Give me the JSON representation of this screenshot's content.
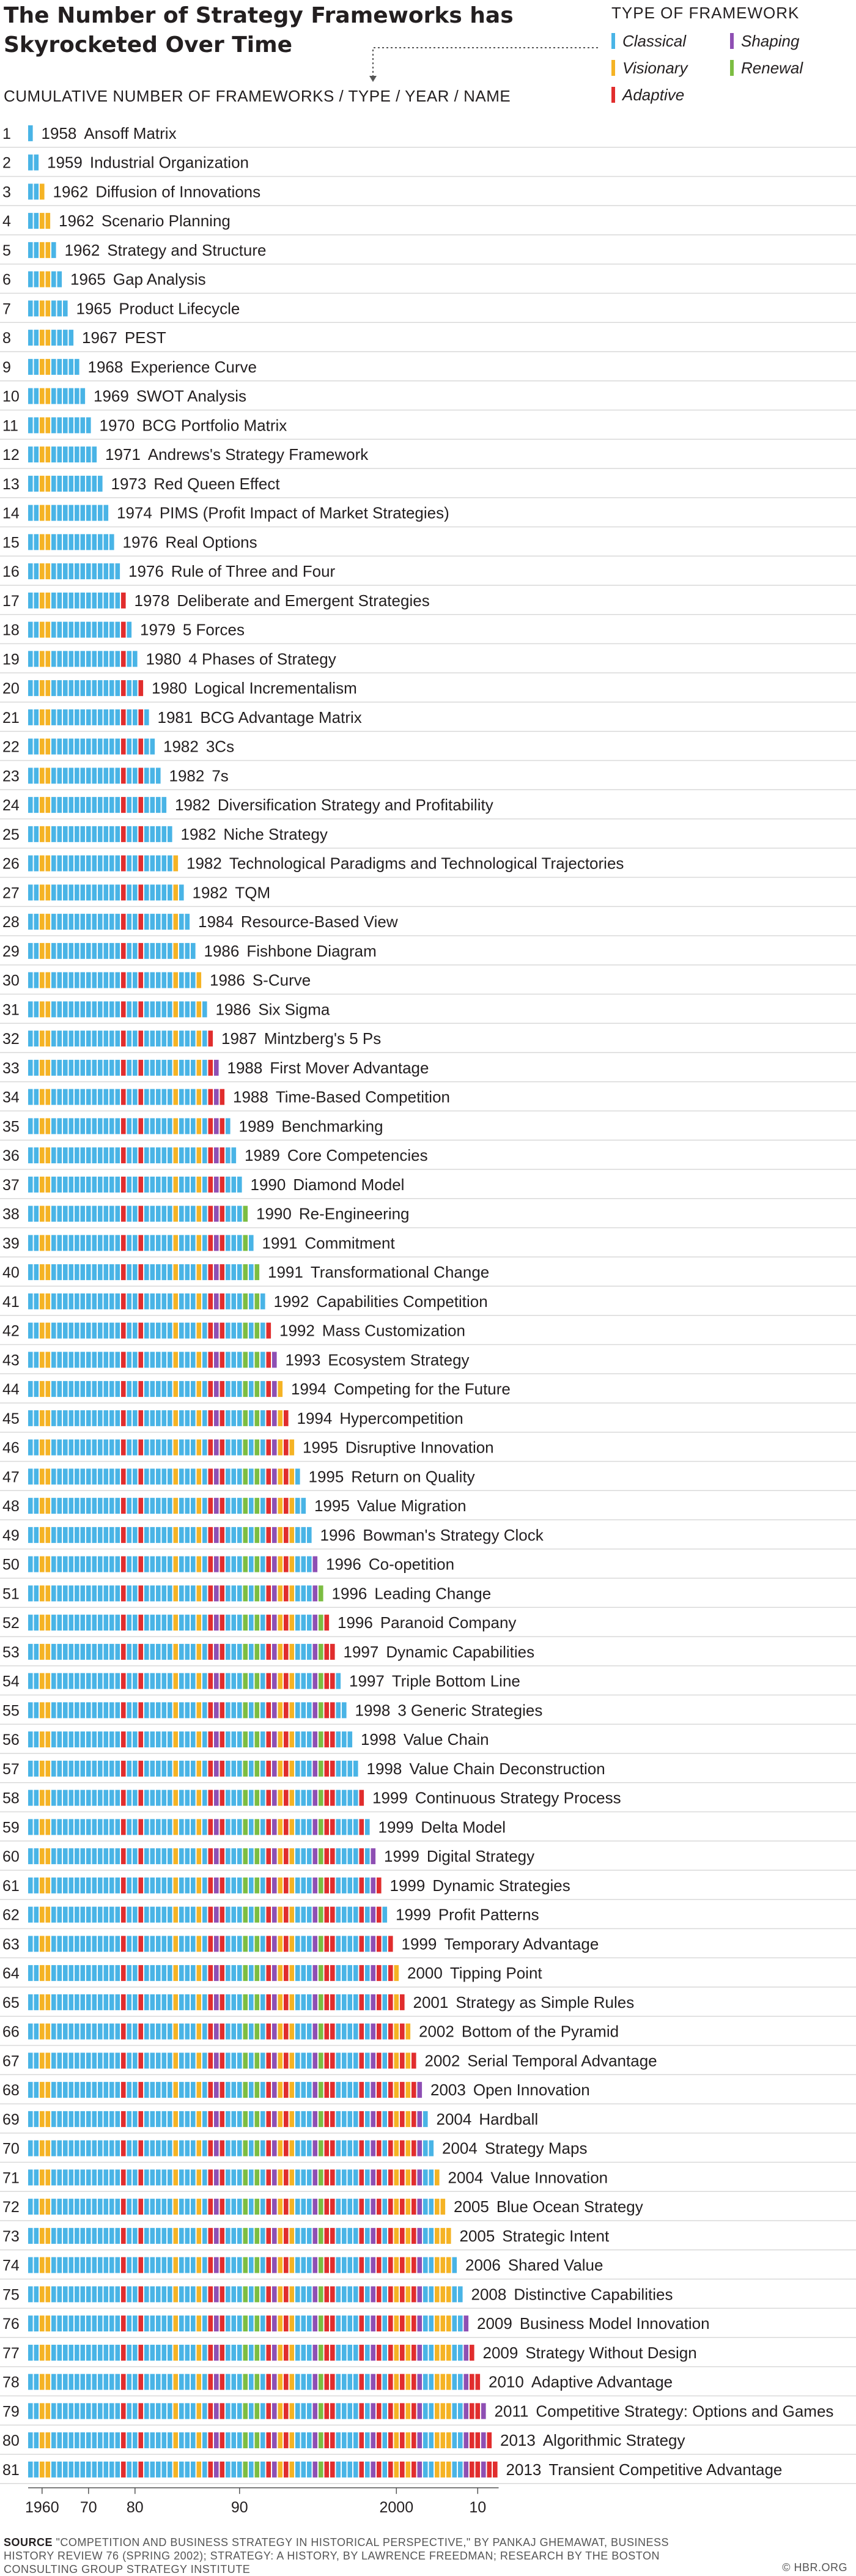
{
  "header": {
    "title": "The Number of Strategy Frameworks has Skyrocketed Over Time",
    "subheader": "CUMULATIVE NUMBER OF FRAMEWORKS / TYPE / YEAR / NAME"
  },
  "legend": {
    "title": "TYPE OF FRAMEWORK",
    "items": [
      {
        "label": "Classical",
        "color": "#49b4e6"
      },
      {
        "label": "Shaping",
        "color": "#8e4fb3"
      },
      {
        "label": "Visionary",
        "color": "#f5b324"
      },
      {
        "label": "Renewal",
        "color": "#7cbd42"
      },
      {
        "label": "Adaptive",
        "color": "#e12d2d"
      }
    ]
  },
  "footer": {
    "source_head": "SOURCE",
    "source_text": "\"COMPETITION AND BUSINESS STRATEGY IN HISTORICAL PERSPECTIVE,\" BY PANKAJ GHEMAWAT, BUSINESS HISTORY REVIEW 76 (SPRING 2002); STRATEGY: A HISTORY, BY LAWRENCE FREEDMAN; RESEARCH BY THE BOSTON CONSULTING GROUP STRATEGY INSTITUTE",
    "credit": "© HBR.ORG"
  },
  "chart_data": {
    "type": "bar",
    "x_tick_labels": [
      "1960",
      "70",
      "80",
      "90",
      "2000",
      "10"
    ],
    "x_tick_years": [
      1960,
      1970,
      1980,
      1990,
      2000,
      2010
    ],
    "frameworks": [
      {
        "n": 1,
        "year": 1958,
        "name": "Ansoff Matrix",
        "type": "Classical"
      },
      {
        "n": 2,
        "year": 1959,
        "name": "Industrial Organization",
        "type": "Classical"
      },
      {
        "n": 3,
        "year": 1962,
        "name": "Diffusion of Innovations",
        "type": "Visionary"
      },
      {
        "n": 4,
        "year": 1962,
        "name": "Scenario Planning",
        "type": "Visionary"
      },
      {
        "n": 5,
        "year": 1962,
        "name": "Strategy and Structure",
        "type": "Classical"
      },
      {
        "n": 6,
        "year": 1965,
        "name": "Gap Analysis",
        "type": "Classical"
      },
      {
        "n": 7,
        "year": 1965,
        "name": "Product Lifecycle",
        "type": "Classical"
      },
      {
        "n": 8,
        "year": 1967,
        "name": "PEST",
        "type": "Classical"
      },
      {
        "n": 9,
        "year": 1968,
        "name": "Experience Curve",
        "type": "Classical"
      },
      {
        "n": 10,
        "year": 1969,
        "name": "SWOT Analysis",
        "type": "Classical"
      },
      {
        "n": 11,
        "year": 1970,
        "name": "BCG Portfolio Matrix",
        "type": "Classical"
      },
      {
        "n": 12,
        "year": 1971,
        "name": "Andrews's Strategy Framework",
        "type": "Classical"
      },
      {
        "n": 13,
        "year": 1973,
        "name": "Red Queen Effect",
        "type": "Classical"
      },
      {
        "n": 14,
        "year": 1974,
        "name": "PIMS (Profit Impact of Market Strategies)",
        "type": "Classical"
      },
      {
        "n": 15,
        "year": 1976,
        "name": "Real Options",
        "type": "Classical"
      },
      {
        "n": 16,
        "year": 1976,
        "name": "Rule of Three and Four",
        "type": "Classical"
      },
      {
        "n": 17,
        "year": 1978,
        "name": "Deliberate and Emergent Strategies",
        "type": "Adaptive"
      },
      {
        "n": 18,
        "year": 1979,
        "name": "5 Forces",
        "type": "Classical"
      },
      {
        "n": 19,
        "year": 1980,
        "name": "4 Phases of Strategy",
        "type": "Classical"
      },
      {
        "n": 20,
        "year": 1980,
        "name": "Logical Incrementalism",
        "type": "Adaptive"
      },
      {
        "n": 21,
        "year": 1981,
        "name": "BCG Advantage Matrix",
        "type": "Classical"
      },
      {
        "n": 22,
        "year": 1982,
        "name": "3Cs",
        "type": "Classical"
      },
      {
        "n": 23,
        "year": 1982,
        "name": "7s",
        "type": "Classical"
      },
      {
        "n": 24,
        "year": 1982,
        "name": "Diversification Strategy and Profitability",
        "type": "Classical"
      },
      {
        "n": 25,
        "year": 1982,
        "name": "Niche Strategy",
        "type": "Classical"
      },
      {
        "n": 26,
        "year": 1982,
        "name": "Technological Paradigms and Technological Trajectories",
        "type": "Visionary"
      },
      {
        "n": 27,
        "year": 1982,
        "name": "TQM",
        "type": "Classical"
      },
      {
        "n": 28,
        "year": 1984,
        "name": "Resource-Based View",
        "type": "Classical"
      },
      {
        "n": 29,
        "year": 1986,
        "name": "Fishbone Diagram",
        "type": "Classical"
      },
      {
        "n": 30,
        "year": 1986,
        "name": "S-Curve",
        "type": "Visionary"
      },
      {
        "n": 31,
        "year": 1986,
        "name": "Six Sigma",
        "type": "Classical"
      },
      {
        "n": 32,
        "year": 1987,
        "name": "Mintzberg's 5 Ps",
        "type": "Adaptive"
      },
      {
        "n": 33,
        "year": 1988,
        "name": "First Mover Advantage",
        "type": "Shaping"
      },
      {
        "n": 34,
        "year": 1988,
        "name": "Time-Based Competition",
        "type": "Adaptive"
      },
      {
        "n": 35,
        "year": 1989,
        "name": "Benchmarking",
        "type": "Classical"
      },
      {
        "n": 36,
        "year": 1989,
        "name": "Core Competencies",
        "type": "Classical"
      },
      {
        "n": 37,
        "year": 1990,
        "name": "Diamond Model",
        "type": "Classical"
      },
      {
        "n": 38,
        "year": 1990,
        "name": "Re-Engineering",
        "type": "Renewal"
      },
      {
        "n": 39,
        "year": 1991,
        "name": "Commitment",
        "type": "Classical"
      },
      {
        "n": 40,
        "year": 1991,
        "name": "Transformational Change",
        "type": "Renewal"
      },
      {
        "n": 41,
        "year": 1992,
        "name": "Capabilities Competition",
        "type": "Classical"
      },
      {
        "n": 42,
        "year": 1992,
        "name": "Mass Customization",
        "type": "Adaptive"
      },
      {
        "n": 43,
        "year": 1993,
        "name": "Ecosystem Strategy",
        "type": "Shaping"
      },
      {
        "n": 44,
        "year": 1994,
        "name": "Competing for the Future",
        "type": "Visionary"
      },
      {
        "n": 45,
        "year": 1994,
        "name": "Hypercompetition",
        "type": "Adaptive"
      },
      {
        "n": 46,
        "year": 1995,
        "name": "Disruptive Innovation",
        "type": "Visionary"
      },
      {
        "n": 47,
        "year": 1995,
        "name": "Return on Quality",
        "type": "Classical"
      },
      {
        "n": 48,
        "year": 1995,
        "name": "Value Migration",
        "type": "Classical"
      },
      {
        "n": 49,
        "year": 1996,
        "name": "Bowman's Strategy Clock",
        "type": "Classical"
      },
      {
        "n": 50,
        "year": 1996,
        "name": "Co-opetition",
        "type": "Shaping"
      },
      {
        "n": 51,
        "year": 1996,
        "name": "Leading Change",
        "type": "Renewal"
      },
      {
        "n": 52,
        "year": 1996,
        "name": "Paranoid Company",
        "type": "Adaptive"
      },
      {
        "n": 53,
        "year": 1997,
        "name": "Dynamic Capabilities",
        "type": "Adaptive"
      },
      {
        "n": 54,
        "year": 1997,
        "name": "Triple Bottom Line",
        "type": "Classical"
      },
      {
        "n": 55,
        "year": 1998,
        "name": "3 Generic Strategies",
        "type": "Classical"
      },
      {
        "n": 56,
        "year": 1998,
        "name": "Value Chain",
        "type": "Classical"
      },
      {
        "n": 57,
        "year": 1998,
        "name": "Value Chain Deconstruction",
        "type": "Classical"
      },
      {
        "n": 58,
        "year": 1999,
        "name": "Continuous Strategy Process",
        "type": "Adaptive"
      },
      {
        "n": 59,
        "year": 1999,
        "name": "Delta Model",
        "type": "Classical"
      },
      {
        "n": 60,
        "year": 1999,
        "name": "Digital Strategy",
        "type": "Shaping"
      },
      {
        "n": 61,
        "year": 1999,
        "name": "Dynamic Strategies",
        "type": "Adaptive"
      },
      {
        "n": 62,
        "year": 1999,
        "name": "Profit Patterns",
        "type": "Classical"
      },
      {
        "n": 63,
        "year": 1999,
        "name": "Temporary Advantage",
        "type": "Adaptive"
      },
      {
        "n": 64,
        "year": 2000,
        "name": "Tipping Point",
        "type": "Visionary"
      },
      {
        "n": 65,
        "year": 2001,
        "name": "Strategy as Simple Rules",
        "type": "Adaptive"
      },
      {
        "n": 66,
        "year": 2002,
        "name": "Bottom of the Pyramid",
        "type": "Visionary"
      },
      {
        "n": 67,
        "year": 2002,
        "name": "Serial Temporal Advantage",
        "type": "Adaptive"
      },
      {
        "n": 68,
        "year": 2003,
        "name": "Open Innovation",
        "type": "Shaping"
      },
      {
        "n": 69,
        "year": 2004,
        "name": "Hardball",
        "type": "Classical"
      },
      {
        "n": 70,
        "year": 2004,
        "name": "Strategy Maps",
        "type": "Classical"
      },
      {
        "n": 71,
        "year": 2004,
        "name": "Value Innovation",
        "type": "Visionary"
      },
      {
        "n": 72,
        "year": 2005,
        "name": "Blue Ocean Strategy",
        "type": "Visionary"
      },
      {
        "n": 73,
        "year": 2005,
        "name": "Strategic Intent",
        "type": "Visionary"
      },
      {
        "n": 74,
        "year": 2006,
        "name": "Shared Value",
        "type": "Classical"
      },
      {
        "n": 75,
        "year": 2008,
        "name": "Distinctive Capabilities",
        "type": "Classical"
      },
      {
        "n": 76,
        "year": 2009,
        "name": "Business Model Innovation",
        "type": "Shaping"
      },
      {
        "n": 77,
        "year": 2009,
        "name": "Strategy Without Design",
        "type": "Adaptive"
      },
      {
        "n": 78,
        "year": 2010,
        "name": "Adaptive Advantage",
        "type": "Adaptive"
      },
      {
        "n": 79,
        "year": 2011,
        "name": "Competitive Strategy: Options and Games",
        "type": "Shaping"
      },
      {
        "n": 80,
        "year": 2013,
        "name": "Algorithmic Strategy",
        "type": "Adaptive"
      },
      {
        "n": 81,
        "year": 2013,
        "name": "Transient Competitive Advantage",
        "type": "Adaptive"
      }
    ]
  }
}
